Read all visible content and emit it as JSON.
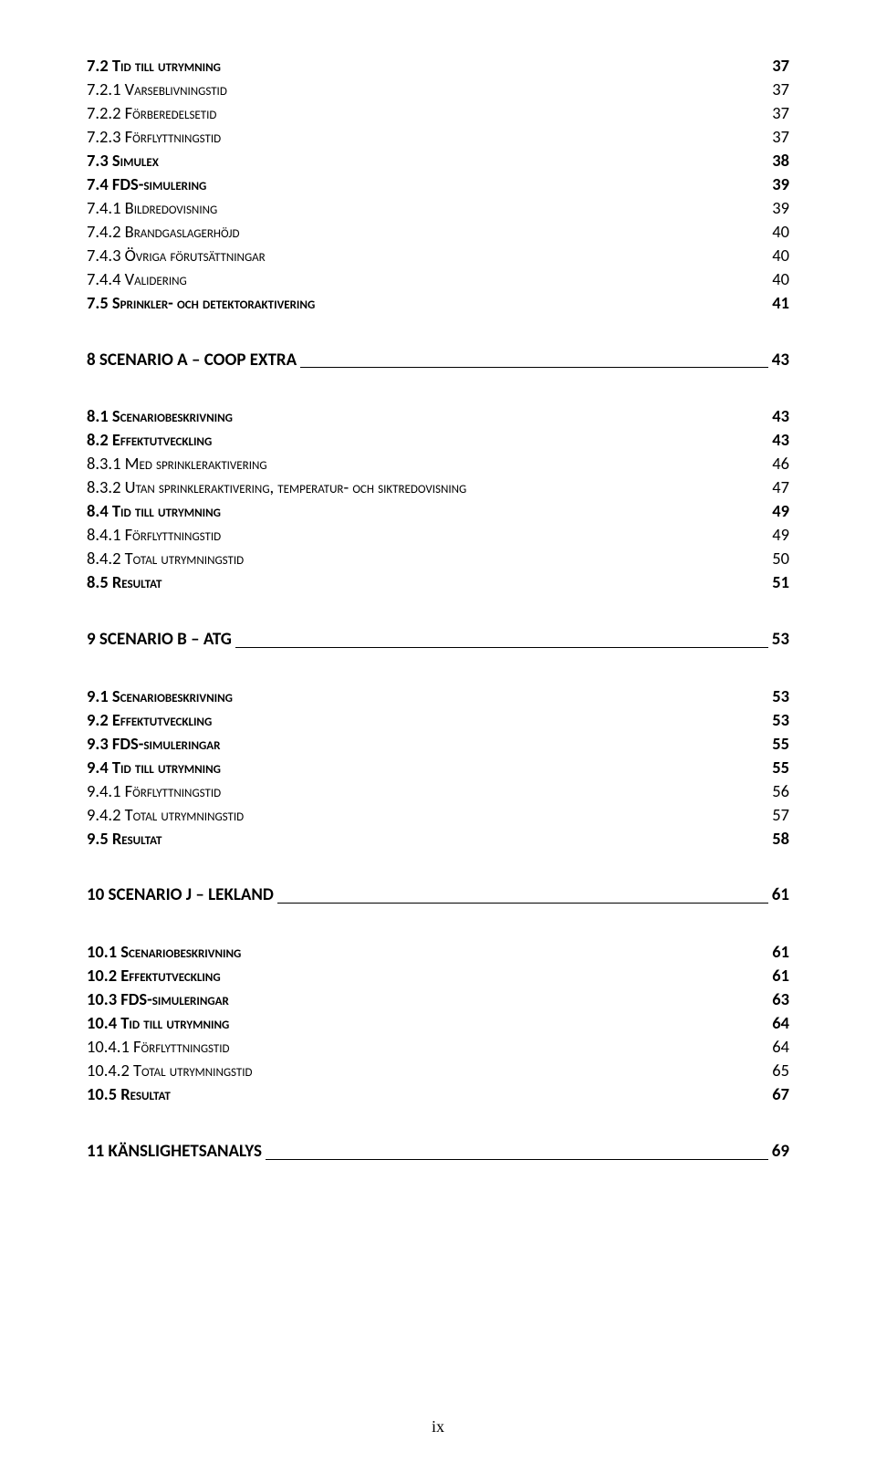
{
  "entries": [
    {
      "label": "7.2 Tid till utrymning",
      "page": "37",
      "style": "lvl-cap-bold"
    },
    {
      "label": "7.2.1 Varseblivningstid",
      "page": "37",
      "style": "lvl-cap"
    },
    {
      "label": "7.2.2 Förberedelsetid",
      "page": "37",
      "style": "lvl-cap"
    },
    {
      "label": "7.2.3 Förflyttningstid",
      "page": "37",
      "style": "lvl-cap"
    },
    {
      "label": "7.3 Simulex",
      "page": "38",
      "style": "lvl-cap-bold"
    },
    {
      "label": "7.4 FDS-simulering",
      "page": "39",
      "style": "lvl-cap-bold"
    },
    {
      "label": "7.4.1 Bildredovisning",
      "page": "39",
      "style": "lvl-cap"
    },
    {
      "label": "7.4.2 Brandgaslagerhöjd",
      "page": "40",
      "style": "lvl-cap"
    },
    {
      "label": "7.4.3 Övriga förutsättningar",
      "page": "40",
      "style": "lvl-cap"
    },
    {
      "label": "7.4.4 Validering",
      "page": "40",
      "style": "lvl-cap"
    },
    {
      "label": "7.5 Sprinkler- och detektoraktivering",
      "page": "41",
      "style": "lvl-cap-bold"
    },
    {
      "type": "spacer-lg"
    },
    {
      "label": "8 SCENARIO A – COOP EXTRA",
      "page": "43",
      "style": "section-heading",
      "underline": true
    },
    {
      "type": "spacer-lg"
    },
    {
      "label": "8.1 Scenariobeskrivning",
      "page": "43",
      "style": "lvl-cap-bold"
    },
    {
      "label": "8.2 Effektutveckling",
      "page": "43",
      "style": "lvl-cap-bold"
    },
    {
      "label": "8.3.1 Med sprinkleraktivering",
      "page": "46",
      "style": "lvl-cap"
    },
    {
      "label": "8.3.2 Utan sprinkleraktivering, temperatur- och siktredovisning",
      "page": "47",
      "style": "lvl-cap"
    },
    {
      "label": "8.4 Tid till utrymning",
      "page": "49",
      "style": "lvl-cap-bold"
    },
    {
      "label": "8.4.1 Förflyttningstid",
      "page": "49",
      "style": "lvl-cap"
    },
    {
      "label": "8.4.2 Total utrymningstid",
      "page": "50",
      "style": "lvl-cap"
    },
    {
      "label": "8.5 Resultat",
      "page": "51",
      "style": "lvl-cap-bold"
    },
    {
      "type": "spacer-lg"
    },
    {
      "label": "9 SCENARIO B – ATG",
      "page": "53",
      "style": "section-heading",
      "underline": true
    },
    {
      "type": "spacer-lg"
    },
    {
      "label": "9.1 Scenariobeskrivning",
      "page": "53",
      "style": "lvl-cap-bold"
    },
    {
      "label": "9.2 Effektutveckling",
      "page": "53",
      "style": "lvl-cap-bold"
    },
    {
      "label": "9.3 FDS-simuleringar",
      "page": "55",
      "style": "lvl-cap-bold"
    },
    {
      "label": "9.4 Tid till utrymning",
      "page": "55",
      "style": "lvl-cap-bold"
    },
    {
      "label": "9.4.1 Förflyttningstid",
      "page": "56",
      "style": "lvl-cap"
    },
    {
      "label": "9.4.2 Total utrymningstid",
      "page": "57",
      "style": "lvl-cap"
    },
    {
      "label": "9.5 Resultat",
      "page": "58",
      "style": "lvl-cap-bold"
    },
    {
      "type": "spacer-lg"
    },
    {
      "label": "10 SCENARIO J – LEKLAND",
      "page": "61",
      "style": "section-heading",
      "underline": true
    },
    {
      "type": "spacer-lg"
    },
    {
      "label": "10.1 Scenariobeskrivning",
      "page": "61",
      "style": "lvl-cap-bold"
    },
    {
      "label": "10.2 Effektutveckling",
      "page": "61",
      "style": "lvl-cap-bold"
    },
    {
      "label": "10.3 FDS-simuleringar",
      "page": "63",
      "style": "lvl-cap-bold"
    },
    {
      "label": "10.4 Tid till utrymning",
      "page": "64",
      "style": "lvl-cap-bold"
    },
    {
      "label": "10.4.1 Förflyttningstid",
      "page": "64",
      "style": "lvl-cap"
    },
    {
      "label": "10.4.2 Total utrymningstid",
      "page": "65",
      "style": "lvl-cap"
    },
    {
      "label": "10.5 Resultat",
      "page": "67",
      "style": "lvl-cap-bold"
    },
    {
      "type": "spacer-lg"
    },
    {
      "label": "11 KÄNSLIGHETSANALYS",
      "page": "69",
      "style": "section-heading",
      "underline": true
    }
  ],
  "footer": "ix"
}
